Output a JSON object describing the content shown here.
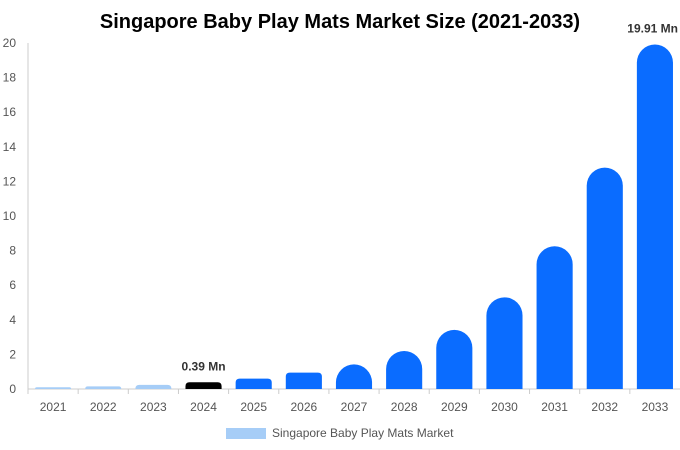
{
  "chart_data": {
    "type": "bar",
    "title": "Singapore Baby Play Mats Market Size (2021-2033)",
    "xlabel": "",
    "ylabel": "",
    "categories": [
      "2021",
      "2022",
      "2023",
      "2024",
      "2025",
      "2026",
      "2027",
      "2028",
      "2029",
      "2030",
      "2031",
      "2032",
      "2033"
    ],
    "series": [
      {
        "name": "Singapore Baby Play Mats Market",
        "values": [
          0.1,
          0.15,
          0.24,
          0.39,
          0.6,
          0.95,
          1.42,
          2.2,
          3.42,
          5.3,
          8.25,
          12.8,
          19.91
        ]
      }
    ],
    "ylim": [
      0,
      20
    ],
    "yticks": [
      0,
      2,
      4,
      6,
      8,
      10,
      12,
      14,
      16,
      18,
      20
    ],
    "grid": false,
    "legend": "bottom-center",
    "data_labels": [
      {
        "category": "2024",
        "text": "0.39 Mn"
      },
      {
        "category": "2033",
        "text": "19.91 Mn"
      }
    ],
    "colors": {
      "historical": "#a6cdf7",
      "base_year": "#000000",
      "forecast": "#0a6cff",
      "legend_swatch": "#a6cdf7",
      "axis": "#cccccc"
    },
    "historical_categories": [
      "2021",
      "2022",
      "2023"
    ],
    "base_year_category": "2024"
  }
}
